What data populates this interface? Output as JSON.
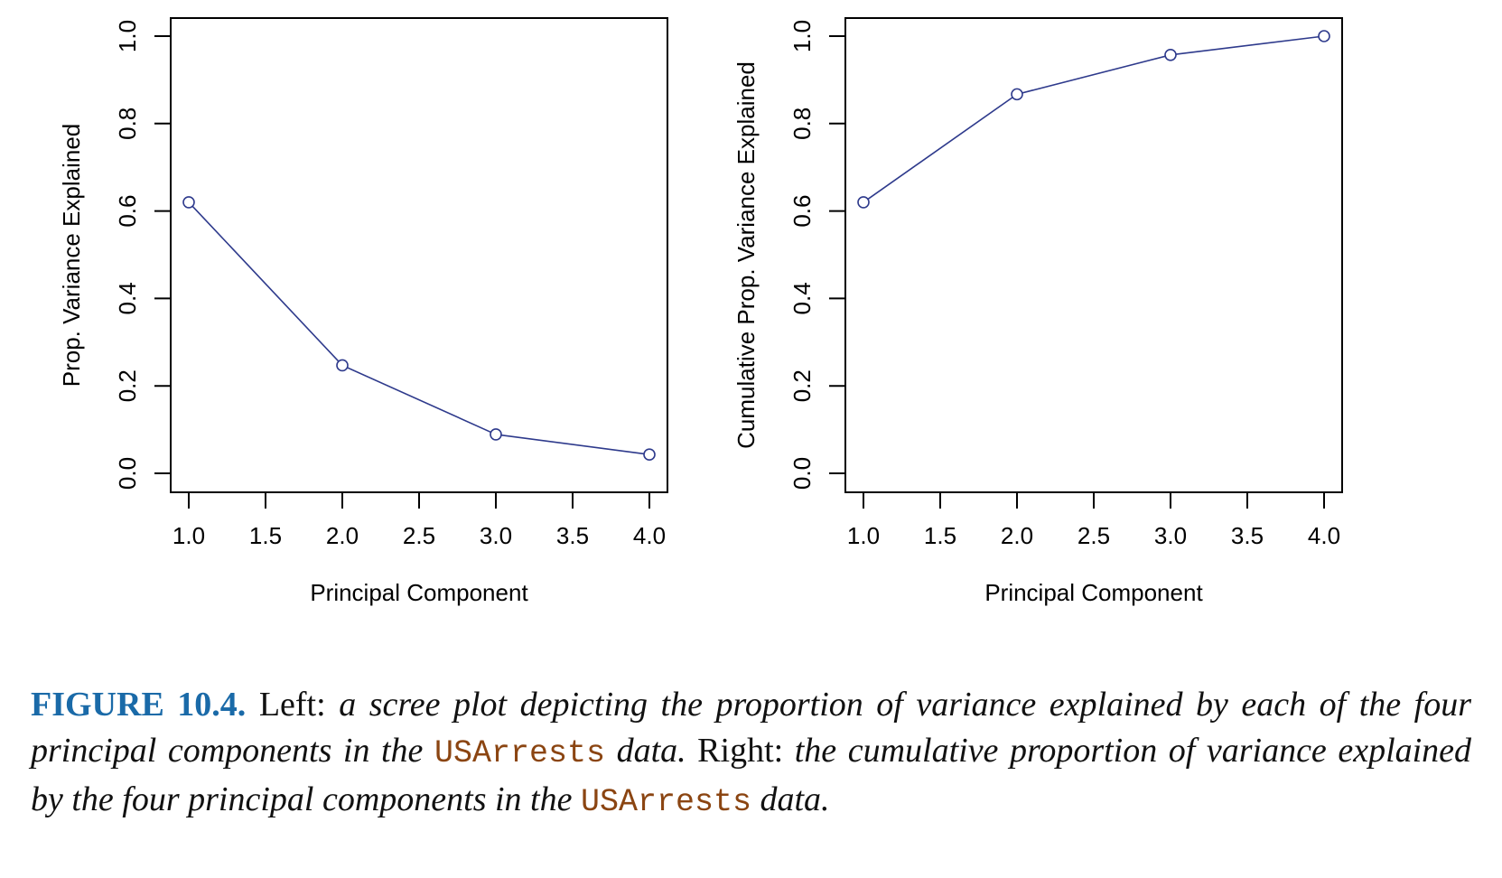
{
  "chart_data": [
    {
      "type": "line",
      "panel": "left",
      "x": [
        1,
        2,
        3,
        4
      ],
      "series": [
        {
          "values": [
            0.62,
            0.247,
            0.089,
            0.043
          ]
        }
      ],
      "marker": "open-circle",
      "xlabel": "Principal Component",
      "ylabel": "Prop. Variance Explained",
      "xlim": [
        1.0,
        4.0
      ],
      "ylim": [
        0.0,
        1.0
      ],
      "xticks": [
        "1.0",
        "1.5",
        "2.0",
        "2.5",
        "3.0",
        "3.5",
        "4.0"
      ],
      "yticks": [
        "0.0",
        "0.2",
        "0.4",
        "0.6",
        "0.8",
        "1.0"
      ],
      "line_color": "#2e3a8c",
      "grid": false
    },
    {
      "type": "line",
      "panel": "right",
      "x": [
        1,
        2,
        3,
        4
      ],
      "series": [
        {
          "values": [
            0.62,
            0.867,
            0.957,
            1.0
          ]
        }
      ],
      "marker": "open-circle",
      "xlabel": "Principal Component",
      "ylabel": "Cumulative Prop. Variance Explained",
      "xlim": [
        1.0,
        4.0
      ],
      "ylim": [
        0.0,
        1.0
      ],
      "xticks": [
        "1.0",
        "1.5",
        "2.0",
        "2.5",
        "3.0",
        "3.5",
        "4.0"
      ],
      "yticks": [
        "0.0",
        "0.2",
        "0.4",
        "0.6",
        "0.8",
        "1.0"
      ],
      "line_color": "#2e3a8c",
      "grid": false
    }
  ],
  "caption": {
    "label": "FIGURE 10.4.",
    "seg1": "Left:",
    "seg2": "a scree plot depicting the proportion of variance explained by each of the four principal components in the",
    "code1": "USArrests",
    "seg3": "data.",
    "seg4": "Right:",
    "seg5": "the cumulative proportion of variance explained by the four principal components in the",
    "code2": "USArrests",
    "seg6": "data."
  }
}
